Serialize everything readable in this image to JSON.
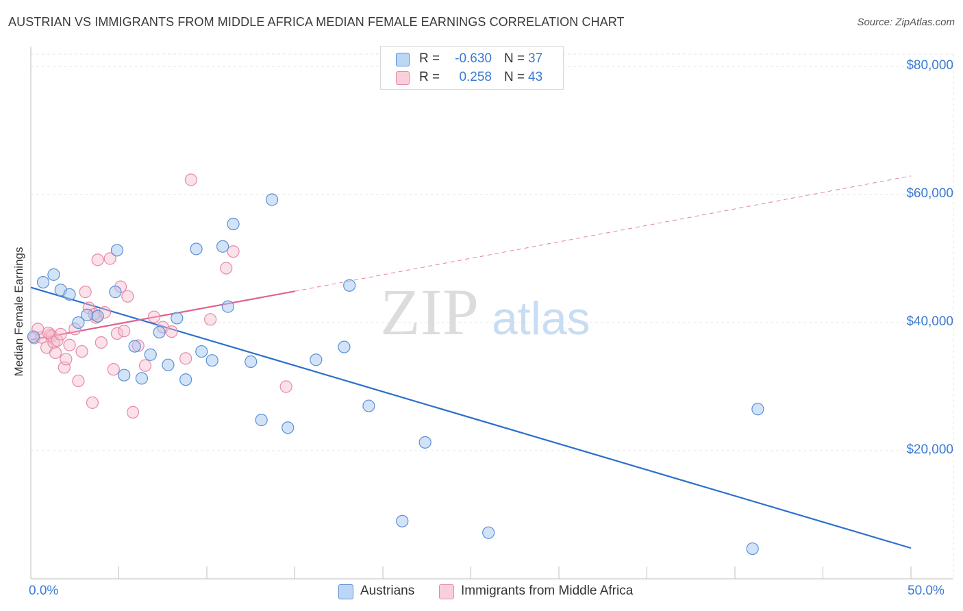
{
  "title": "AUSTRIAN VS IMMIGRANTS FROM MIDDLE AFRICA MEDIAN FEMALE EARNINGS CORRELATION CHART",
  "source": "Source: ZipAtlas.com",
  "watermark": {
    "zip": "ZIP",
    "atlas": "atlas"
  },
  "legend": {
    "r_label": "R =",
    "n_label": "N =",
    "rows": [
      {
        "r": "-0.630",
        "n": "37"
      },
      {
        "r": "0.258",
        "n": "43"
      }
    ]
  },
  "chart_data": {
    "type": "scatter",
    "ylabel": "Median Female Earnings",
    "xlabel": "",
    "xlim": [
      0,
      50
    ],
    "ylim": [
      0,
      83000
    ],
    "x_tick_labels": {
      "min": "0.0%",
      "max": "50.0%"
    },
    "y_ticks": [
      {
        "value": 20000,
        "label": "$20,000"
      },
      {
        "value": 40000,
        "label": "$40,000"
      },
      {
        "value": 60000,
        "label": "$60,000"
      },
      {
        "value": 80000,
        "label": "$80,000"
      }
    ],
    "grid": true,
    "legend_position": "bottom",
    "colors": {
      "austrians_fill": "#a8c8f0",
      "austrians_stroke": "#5b8fd6",
      "austrians_line": "#2d6fcc",
      "africa_fill": "#f6bccd",
      "africa_stroke": "#e58aa8",
      "africa_line": "#e0608c",
      "tick_text": "#3a7bd5",
      "grid": "#e4e4e4"
    },
    "series": [
      {
        "name": "Austrians",
        "trend": {
          "x": [
            0,
            50
          ],
          "y": [
            45500,
            4800
          ]
        },
        "points": [
          {
            "x": 0.7,
            "y": 46300
          },
          {
            "x": 1.3,
            "y": 47500
          },
          {
            "x": 1.7,
            "y": 45100
          },
          {
            "x": 2.2,
            "y": 44400
          },
          {
            "x": 2.7,
            "y": 40000
          },
          {
            "x": 3.2,
            "y": 41200
          },
          {
            "x": 3.8,
            "y": 41000
          },
          {
            "x": 4.8,
            "y": 44800
          },
          {
            "x": 4.9,
            "y": 51300
          },
          {
            "x": 5.3,
            "y": 31800
          },
          {
            "x": 5.9,
            "y": 36300
          },
          {
            "x": 6.3,
            "y": 31300
          },
          {
            "x": 6.8,
            "y": 35000
          },
          {
            "x": 7.3,
            "y": 38500
          },
          {
            "x": 7.8,
            "y": 33400
          },
          {
            "x": 8.3,
            "y": 40700
          },
          {
            "x": 8.8,
            "y": 31100
          },
          {
            "x": 9.4,
            "y": 51500
          },
          {
            "x": 9.7,
            "y": 35500
          },
          {
            "x": 10.3,
            "y": 34100
          },
          {
            "x": 10.9,
            "y": 51900
          },
          {
            "x": 11.2,
            "y": 42500
          },
          {
            "x": 11.5,
            "y": 55400
          },
          {
            "x": 12.5,
            "y": 33900
          },
          {
            "x": 13.1,
            "y": 24800
          },
          {
            "x": 13.7,
            "y": 59200
          },
          {
            "x": 14.6,
            "y": 23600
          },
          {
            "x": 16.2,
            "y": 34200
          },
          {
            "x": 17.8,
            "y": 36200
          },
          {
            "x": 18.1,
            "y": 45800
          },
          {
            "x": 19.2,
            "y": 27000
          },
          {
            "x": 21.1,
            "y": 9000
          },
          {
            "x": 22.4,
            "y": 21300
          },
          {
            "x": 26.0,
            "y": 7200
          },
          {
            "x": 41.0,
            "y": 4700
          },
          {
            "x": 41.3,
            "y": 26500
          },
          {
            "x": 0.15,
            "y": 37800
          }
        ]
      },
      {
        "name": "Immigrants from Middle Africa",
        "trend": {
          "x": [
            0,
            15
          ],
          "y": [
            37300,
            44900
          ],
          "dashed_to": {
            "x": 50,
            "y": 62900
          }
        },
        "points": [
          {
            "x": 0.2,
            "y": 37600
          },
          {
            "x": 0.6,
            "y": 37700
          },
          {
            "x": 0.9,
            "y": 36100
          },
          {
            "x": 1.1,
            "y": 38100
          },
          {
            "x": 1.2,
            "y": 37900
          },
          {
            "x": 1.3,
            "y": 36900
          },
          {
            "x": 1.4,
            "y": 35300
          },
          {
            "x": 1.5,
            "y": 37200
          },
          {
            "x": 1.7,
            "y": 38200
          },
          {
            "x": 1.9,
            "y": 33000
          },
          {
            "x": 2.0,
            "y": 34300
          },
          {
            "x": 2.2,
            "y": 36500
          },
          {
            "x": 2.5,
            "y": 39000
          },
          {
            "x": 2.7,
            "y": 30900
          },
          {
            "x": 2.9,
            "y": 35500
          },
          {
            "x": 3.1,
            "y": 44800
          },
          {
            "x": 3.3,
            "y": 42300
          },
          {
            "x": 3.5,
            "y": 27500
          },
          {
            "x": 3.7,
            "y": 40800
          },
          {
            "x": 3.8,
            "y": 49800
          },
          {
            "x": 4.0,
            "y": 36900
          },
          {
            "x": 4.2,
            "y": 41600
          },
          {
            "x": 4.5,
            "y": 50000
          },
          {
            "x": 4.7,
            "y": 32700
          },
          {
            "x": 4.9,
            "y": 38300
          },
          {
            "x": 5.1,
            "y": 45600
          },
          {
            "x": 5.3,
            "y": 38700
          },
          {
            "x": 5.5,
            "y": 44100
          },
          {
            "x": 5.8,
            "y": 26000
          },
          {
            "x": 6.1,
            "y": 36400
          },
          {
            "x": 6.5,
            "y": 33300
          },
          {
            "x": 7.0,
            "y": 40900
          },
          {
            "x": 7.5,
            "y": 39300
          },
          {
            "x": 8.0,
            "y": 38600
          },
          {
            "x": 8.8,
            "y": 34400
          },
          {
            "x": 9.1,
            "y": 62300
          },
          {
            "x": 10.2,
            "y": 40500
          },
          {
            "x": 11.1,
            "y": 48500
          },
          {
            "x": 11.5,
            "y": 51100
          },
          {
            "x": 14.5,
            "y": 30000
          },
          {
            "x": 0.4,
            "y": 39000
          },
          {
            "x": 1.0,
            "y": 38400
          },
          {
            "x": 3.6,
            "y": 41300
          }
        ]
      }
    ]
  }
}
